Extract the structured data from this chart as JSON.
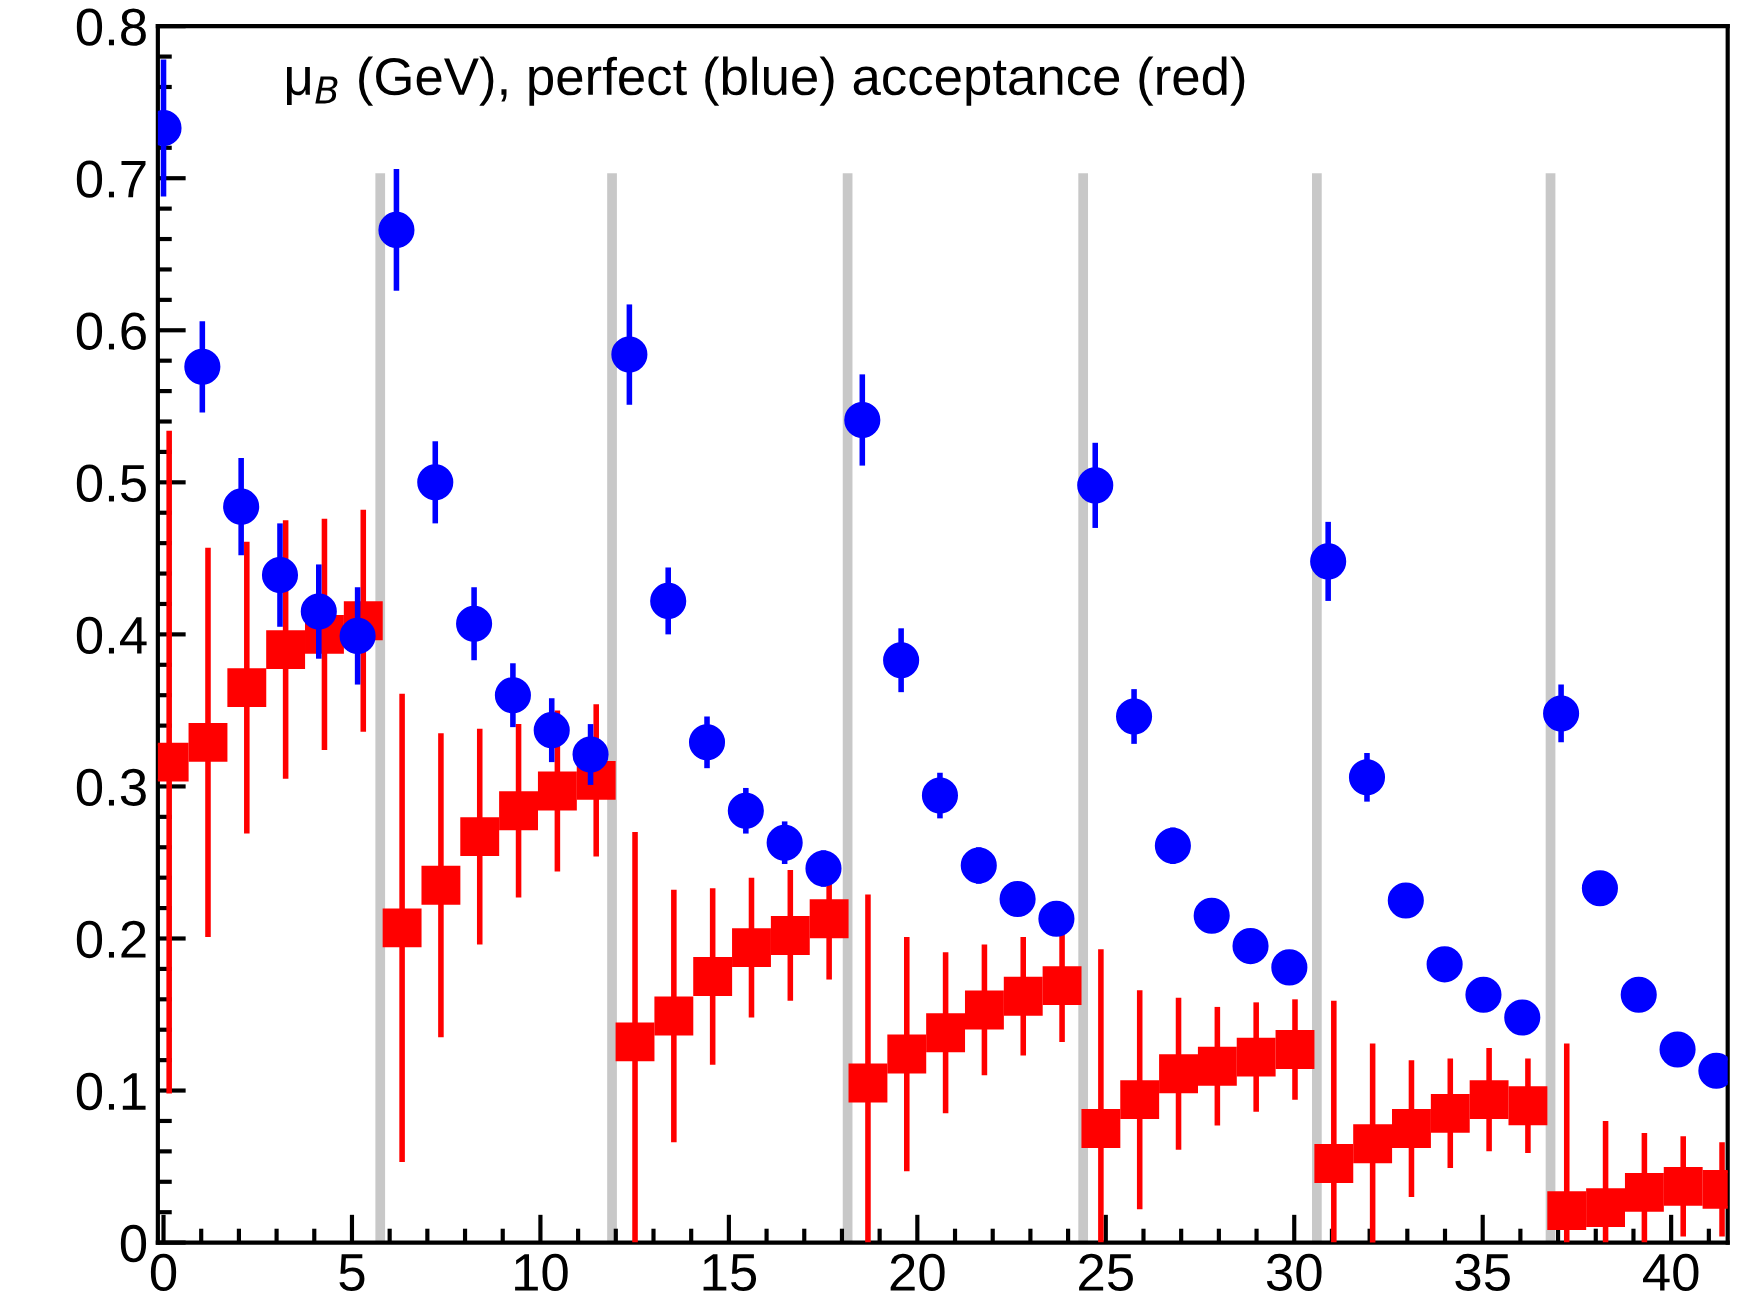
{
  "chart_data": {
    "type": "scatter",
    "title": "μ$_{B}$ (GeV), perfect (blue) acceptance (red)",
    "xlim": [
      -0.15,
      41.5
    ],
    "ylim": [
      0,
      0.8
    ],
    "xticks": [
      0,
      5,
      10,
      15,
      20,
      25,
      30,
      35,
      40
    ],
    "yticks": [
      0,
      {
        "value": 0.1,
        "label": "0.1"
      },
      {
        "value": 0.2,
        "label": "0.2"
      },
      {
        "value": 0.3,
        "label": "0.3"
      },
      {
        "value": 0.4,
        "label": "0.4"
      },
      {
        "value": 0.5,
        "label": "0.5"
      },
      {
        "value": 0.6,
        "label": "0.6"
      },
      {
        "value": 0.7,
        "label": "0.7"
      },
      {
        "value": 0.8,
        "label": "0.8"
      }
    ],
    "grid": false,
    "legend": false,
    "series": [
      {
        "type": "line",
        "color": "#c8c8c8",
        "x": [
          5.75,
          5.75
        ],
        "values": [
          0,
          0.7
        ],
        "marker": "none"
      },
      {
        "type": "line",
        "color": "#c8c8c8",
        "x": [
          11.9,
          11.9
        ],
        "values": [
          0,
          0.7
        ],
        "marker": "none"
      },
      {
        "type": "line",
        "color": "#c8c8c8",
        "x": [
          18.15,
          18.15
        ],
        "values": [
          0,
          0.7
        ],
        "marker": "none"
      },
      {
        "type": "line",
        "color": "#c8c8c8",
        "x": [
          24.4,
          24.4
        ],
        "values": [
          0,
          0.7
        ],
        "marker": "none"
      },
      {
        "type": "line",
        "color": "#c8c8c8",
        "x": [
          30.6,
          30.6
        ],
        "values": [
          0,
          0.7
        ],
        "marker": "none"
      },
      {
        "type": "line",
        "color": "#c8c8c8",
        "x": [
          36.8,
          36.8
        ],
        "values": [
          0,
          0.7
        ],
        "marker": "none"
      },
      {
        "color": "#0000ff",
        "marker": "circle",
        "x": [
          0,
          1.03,
          2.06,
          3.09,
          4.12,
          5.15,
          6.18,
          7.21,
          8.24,
          9.27,
          10.3,
          11.33,
          12.36,
          13.39,
          14.42,
          15.45,
          16.48,
          17.51,
          18.54,
          19.57,
          20.6,
          21.63,
          22.66,
          23.69,
          24.72,
          25.75,
          26.78,
          27.81,
          28.84,
          29.87,
          30.9,
          31.93,
          32.96,
          33.99,
          35.02,
          36.05,
          37.08,
          38.11,
          39.14,
          40.17,
          41.2
        ],
        "values": [
          0.733,
          0.576,
          0.484,
          0.439,
          0.415,
          0.399,
          0.666,
          0.5,
          0.407,
          0.36,
          0.337,
          0.321,
          0.584,
          0.422,
          0.329,
          0.284,
          0.263,
          0.246,
          0.541,
          0.383,
          0.294,
          0.248,
          0.226,
          0.213,
          0.498,
          0.346,
          0.261,
          0.215,
          0.195,
          0.181,
          0.448,
          0.306,
          0.225,
          0.183,
          0.163,
          0.148,
          0.348,
          0.233,
          0.163,
          0.127,
          0.113
        ],
        "errors": [
          0.045,
          0.03,
          0.032,
          0.034,
          0.031,
          0.032,
          0.04,
          0.027,
          0.024,
          0.021,
          0.021,
          0.02,
          0.033,
          0.022,
          0.017,
          0.015,
          0.014,
          0.012,
          0.03,
          0.021,
          0.015,
          0.012,
          0.008,
          0.008,
          0.028,
          0.018,
          0.012,
          0.007,
          0.007,
          0.006,
          0.026,
          0.016,
          0.008,
          0.006,
          0.005,
          0.005,
          0.019,
          0.01,
          0.005,
          0.005,
          0.005
        ]
      },
      {
        "color": "#ff0000",
        "marker": "square",
        "x": [
          0.15,
          1.18,
          2.21,
          3.24,
          4.27,
          5.3,
          6.33,
          7.36,
          8.39,
          9.42,
          10.45,
          11.48,
          12.51,
          13.54,
          14.57,
          15.6,
          16.63,
          17.66,
          18.69,
          19.72,
          20.75,
          21.78,
          22.81,
          23.84,
          24.87,
          25.9,
          26.93,
          27.96,
          28.99,
          30.02,
          31.05,
          32.08,
          33.11,
          34.14,
          35.17,
          36.2,
          37.23,
          38.26,
          39.29,
          40.32,
          41.35
        ],
        "values": [
          0.316,
          0.329,
          0.365,
          0.39,
          0.4,
          0.409,
          0.207,
          0.235,
          0.267,
          0.284,
          0.297,
          0.304,
          0.132,
          0.149,
          0.175,
          0.194,
          0.202,
          0.213,
          0.105,
          0.124,
          0.138,
          0.153,
          0.162,
          0.169,
          0.075,
          0.094,
          0.111,
          0.116,
          0.122,
          0.127,
          0.052,
          0.065,
          0.075,
          0.085,
          0.094,
          0.09,
          0.021,
          0.023,
          0.033,
          0.037,
          0.035
        ],
        "errors": [
          0.218,
          0.128,
          0.096,
          0.085,
          0.076,
          0.073,
          0.154,
          0.1,
          0.071,
          0.057,
          0.053,
          0.05,
          [
            0,
            0.27
          ],
          0.083,
          0.058,
          0.046,
          0.043,
          0.04,
          [
            0,
            0.229
          ],
          0.077,
          0.053,
          0.043,
          0.039,
          0.037,
          [
            0,
            0.193
          ],
          0.072,
          0.05,
          0.039,
          0.036,
          0.033,
          [
            0,
            0.159
          ],
          0.066,
          0.045,
          0.036,
          0.034,
          0.031,
          [
            0,
            0.131
          ],
          [
            0,
            0.08
          ],
          [
            0,
            0.072
          ],
          0.033,
          0.031
        ]
      }
    ]
  }
}
